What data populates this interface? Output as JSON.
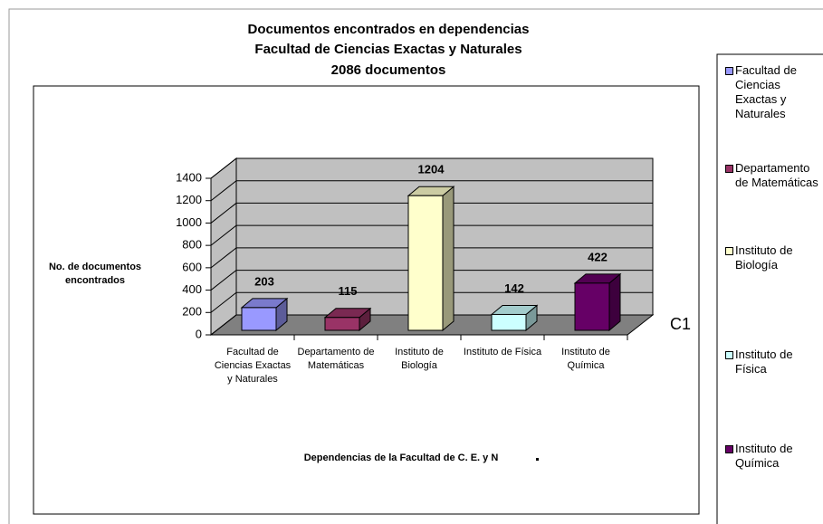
{
  "chart_data": {
    "type": "bar3d",
    "title": [
      "Documentos encontrados  en dependencias",
      "Facultad de Ciencias Exactas y Naturales",
      "2086 documentos"
    ],
    "y_label": "No. de documentos encontrados",
    "x_label": "Dependencias de la Facultad de C. E. y N",
    "depth_label": "C1",
    "categories": [
      "Facultad de Ciencias Exactas y Naturales",
      "Departamento de Matemáticas",
      "Instituto de Biología",
      "Instituto de Física",
      "Instituto de Química"
    ],
    "values": [
      203,
      115,
      1204,
      142,
      422
    ],
    "colors": [
      "#9999ff",
      "#993366",
      "#ffffcc",
      "#ccffff",
      "#660066"
    ],
    "ylim": [
      0,
      1400
    ],
    "yticks": [
      0,
      200,
      400,
      600,
      800,
      1000,
      1200,
      1400
    ],
    "grid": true,
    "legend": "right",
    "data_labels": true
  }
}
